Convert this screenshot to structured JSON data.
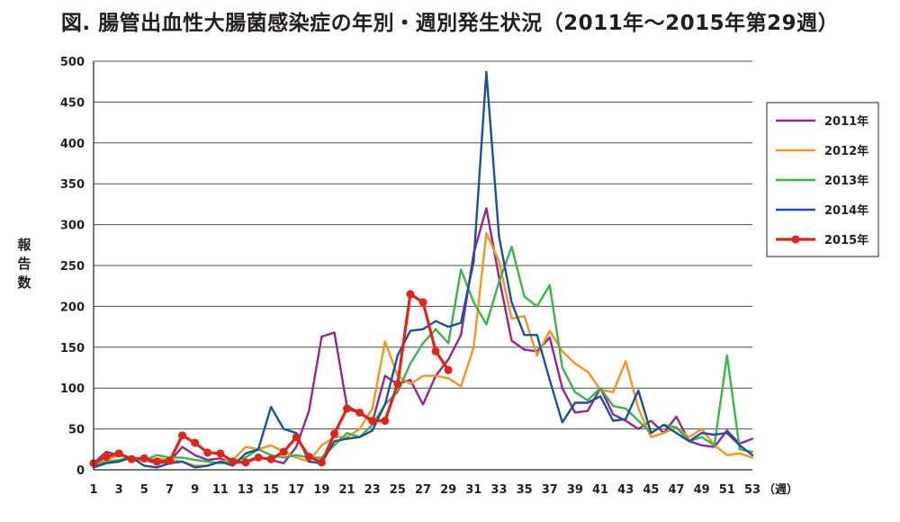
{
  "chart_data": {
    "type": "line",
    "title": "図. 腸管出血性大腸菌感染症の年別・週別発生状況（2011年～2015年第29週）",
    "ylabel": "報告数",
    "xlabel_unit": "（週）",
    "ylim": [
      0,
      500
    ],
    "yticks": [
      0,
      50,
      100,
      150,
      200,
      250,
      300,
      350,
      400,
      450,
      500
    ],
    "xlim": [
      1,
      53
    ],
    "xticks": [
      1,
      3,
      5,
      7,
      9,
      11,
      13,
      15,
      17,
      19,
      21,
      23,
      25,
      27,
      29,
      31,
      33,
      35,
      37,
      39,
      41,
      43,
      45,
      47,
      49,
      51,
      53
    ],
    "grid": "horizontal",
    "legend_position": "right",
    "series": [
      {
        "name": "2011年",
        "color": "#92278f",
        "marker": false,
        "values": [
          8,
          22,
          18,
          14,
          12,
          8,
          10,
          28,
          18,
          12,
          14,
          8,
          10,
          16,
          12,
          8,
          28,
          72,
          163,
          168,
          78,
          70,
          58,
          115,
          105,
          110,
          80,
          115,
          135,
          165,
          265,
          320,
          235,
          158,
          147,
          145,
          162,
          100,
          70,
          72,
          100,
          68,
          60,
          50,
          60,
          45,
          65,
          35,
          30,
          28,
          48,
          32,
          38
        ]
      },
      {
        "name": "2012年",
        "color": "#f7941d",
        "marker": false,
        "values": [
          5,
          12,
          18,
          15,
          10,
          14,
          12,
          10,
          5,
          5,
          10,
          12,
          28,
          25,
          30,
          22,
          15,
          10,
          30,
          40,
          40,
          50,
          75,
          157,
          115,
          105,
          115,
          115,
          112,
          102,
          150,
          290,
          255,
          185,
          188,
          140,
          170,
          145,
          130,
          120,
          98,
          95,
          133,
          75,
          40,
          45,
          52,
          40,
          50,
          30,
          18,
          20,
          15
        ]
      },
      {
        "name": "2013年",
        "color": "#39b54a",
        "marker": false,
        "values": [
          6,
          10,
          12,
          16,
          12,
          18,
          15,
          15,
          12,
          10,
          8,
          10,
          15,
          25,
          18,
          15,
          18,
          15,
          15,
          30,
          45,
          40,
          55,
          80,
          95,
          130,
          155,
          172,
          155,
          245,
          205,
          178,
          230,
          273,
          212,
          200,
          226,
          125,
          95,
          85,
          100,
          78,
          75,
          60,
          45,
          55,
          52,
          35,
          40,
          30,
          140,
          25,
          22
        ]
      },
      {
        "name": "2014年",
        "color": "#1c4fa1",
        "marker": false,
        "values": [
          3,
          8,
          10,
          15,
          5,
          3,
          8,
          10,
          3,
          5,
          10,
          5,
          20,
          25,
          77,
          50,
          45,
          10,
          8,
          35,
          38,
          40,
          48,
          80,
          140,
          170,
          172,
          182,
          175,
          180,
          255,
          487,
          285,
          205,
          165,
          165,
          110,
          58,
          82,
          82,
          90,
          60,
          62,
          97,
          45,
          55,
          45,
          35,
          45,
          43,
          45,
          30,
          18
        ]
      },
      {
        "name": "2015年",
        "color": "#e2231a",
        "marker": true,
        "values": [
          8,
          16,
          20,
          13,
          14,
          10,
          11,
          42,
          33,
          21,
          20,
          10,
          9,
          15,
          13,
          22,
          40,
          16,
          9,
          44,
          75,
          70,
          60,
          60,
          105,
          215,
          205,
          145,
          122
        ]
      }
    ]
  }
}
